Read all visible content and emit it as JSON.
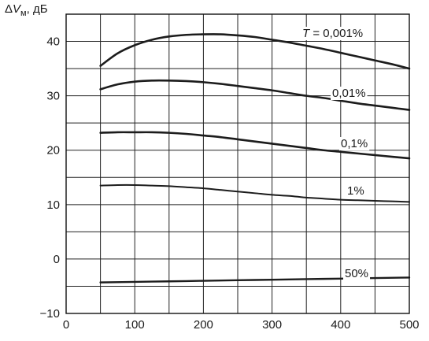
{
  "chart_data": {
    "type": "line",
    "title": "",
    "xlabel": "",
    "ylabel": "ΔVм, дБ",
    "ylabel_parts": {
      "delta": "Δ",
      "var": "V",
      "sub": "м",
      "unit": ", дБ"
    },
    "xlim": [
      0,
      500
    ],
    "ylim": [
      -10,
      45
    ],
    "xticks": [
      0,
      100,
      200,
      300,
      400,
      500
    ],
    "xtick_labels": [
      "0",
      "100",
      "200",
      "300",
      "400",
      "500"
    ],
    "yticks": [
      -10,
      0,
      10,
      20,
      30,
      40
    ],
    "ytick_labels": [
      "−10",
      "0",
      "10",
      "20",
      "30",
      "40"
    ],
    "grid": true,
    "legend": "none",
    "annotations": [
      {
        "text": "T = 0,001%",
        "italic_prefix": "T",
        "rest": " = 0,001%",
        "series": 0
      },
      {
        "text": "0,01%",
        "series": 1
      },
      {
        "text": "0,1%",
        "series": 2
      },
      {
        "text": "1%",
        "series": 3
      },
      {
        "text": "50%",
        "series": 4
      }
    ],
    "series": [
      {
        "label": "T = 0,001%",
        "x": [
          50,
          75,
          100,
          125,
          150,
          175,
          200,
          225,
          250,
          275,
          300,
          325,
          350,
          375,
          400,
          425,
          450,
          475,
          500
        ],
        "y": [
          35.5,
          37.8,
          39.3,
          40.3,
          40.9,
          41.2,
          41.3,
          41.3,
          41.1,
          40.8,
          40.3,
          39.8,
          39.2,
          38.6,
          37.9,
          37.2,
          36.5,
          35.8,
          35.0
        ]
      },
      {
        "label": "0,01%",
        "x": [
          50,
          75,
          100,
          125,
          150,
          175,
          200,
          225,
          250,
          275,
          300,
          325,
          350,
          375,
          400,
          425,
          450,
          475,
          500
        ],
        "y": [
          31.2,
          32.1,
          32.6,
          32.8,
          32.8,
          32.7,
          32.5,
          32.2,
          31.8,
          31.4,
          31.0,
          30.5,
          30.0,
          29.6,
          29.1,
          28.6,
          28.2,
          27.8,
          27.4
        ]
      },
      {
        "label": "0,1%",
        "x": [
          50,
          75,
          100,
          125,
          150,
          175,
          200,
          225,
          250,
          275,
          300,
          325,
          350,
          375,
          400,
          425,
          450,
          475,
          500
        ],
        "y": [
          23.2,
          23.3,
          23.3,
          23.3,
          23.2,
          23.0,
          22.7,
          22.4,
          22.0,
          21.6,
          21.2,
          20.8,
          20.4,
          20.0,
          19.7,
          19.4,
          19.1,
          18.8,
          18.5
        ]
      },
      {
        "label": "1%",
        "x": [
          50,
          75,
          100,
          125,
          150,
          175,
          200,
          225,
          250,
          275,
          300,
          325,
          350,
          375,
          400,
          425,
          450,
          475,
          500
        ],
        "y": [
          13.5,
          13.6,
          13.6,
          13.5,
          13.4,
          13.2,
          13.0,
          12.7,
          12.4,
          12.1,
          11.8,
          11.6,
          11.3,
          11.1,
          10.9,
          10.8,
          10.7,
          10.6,
          10.5
        ]
      },
      {
        "label": "50%",
        "x": [
          50,
          100,
          150,
          200,
          250,
          300,
          350,
          400,
          450,
          500
        ],
        "y": [
          -4.3,
          -4.2,
          -4.1,
          -4.0,
          -3.9,
          -3.8,
          -3.7,
          -3.6,
          -3.5,
          -3.4
        ]
      }
    ]
  }
}
